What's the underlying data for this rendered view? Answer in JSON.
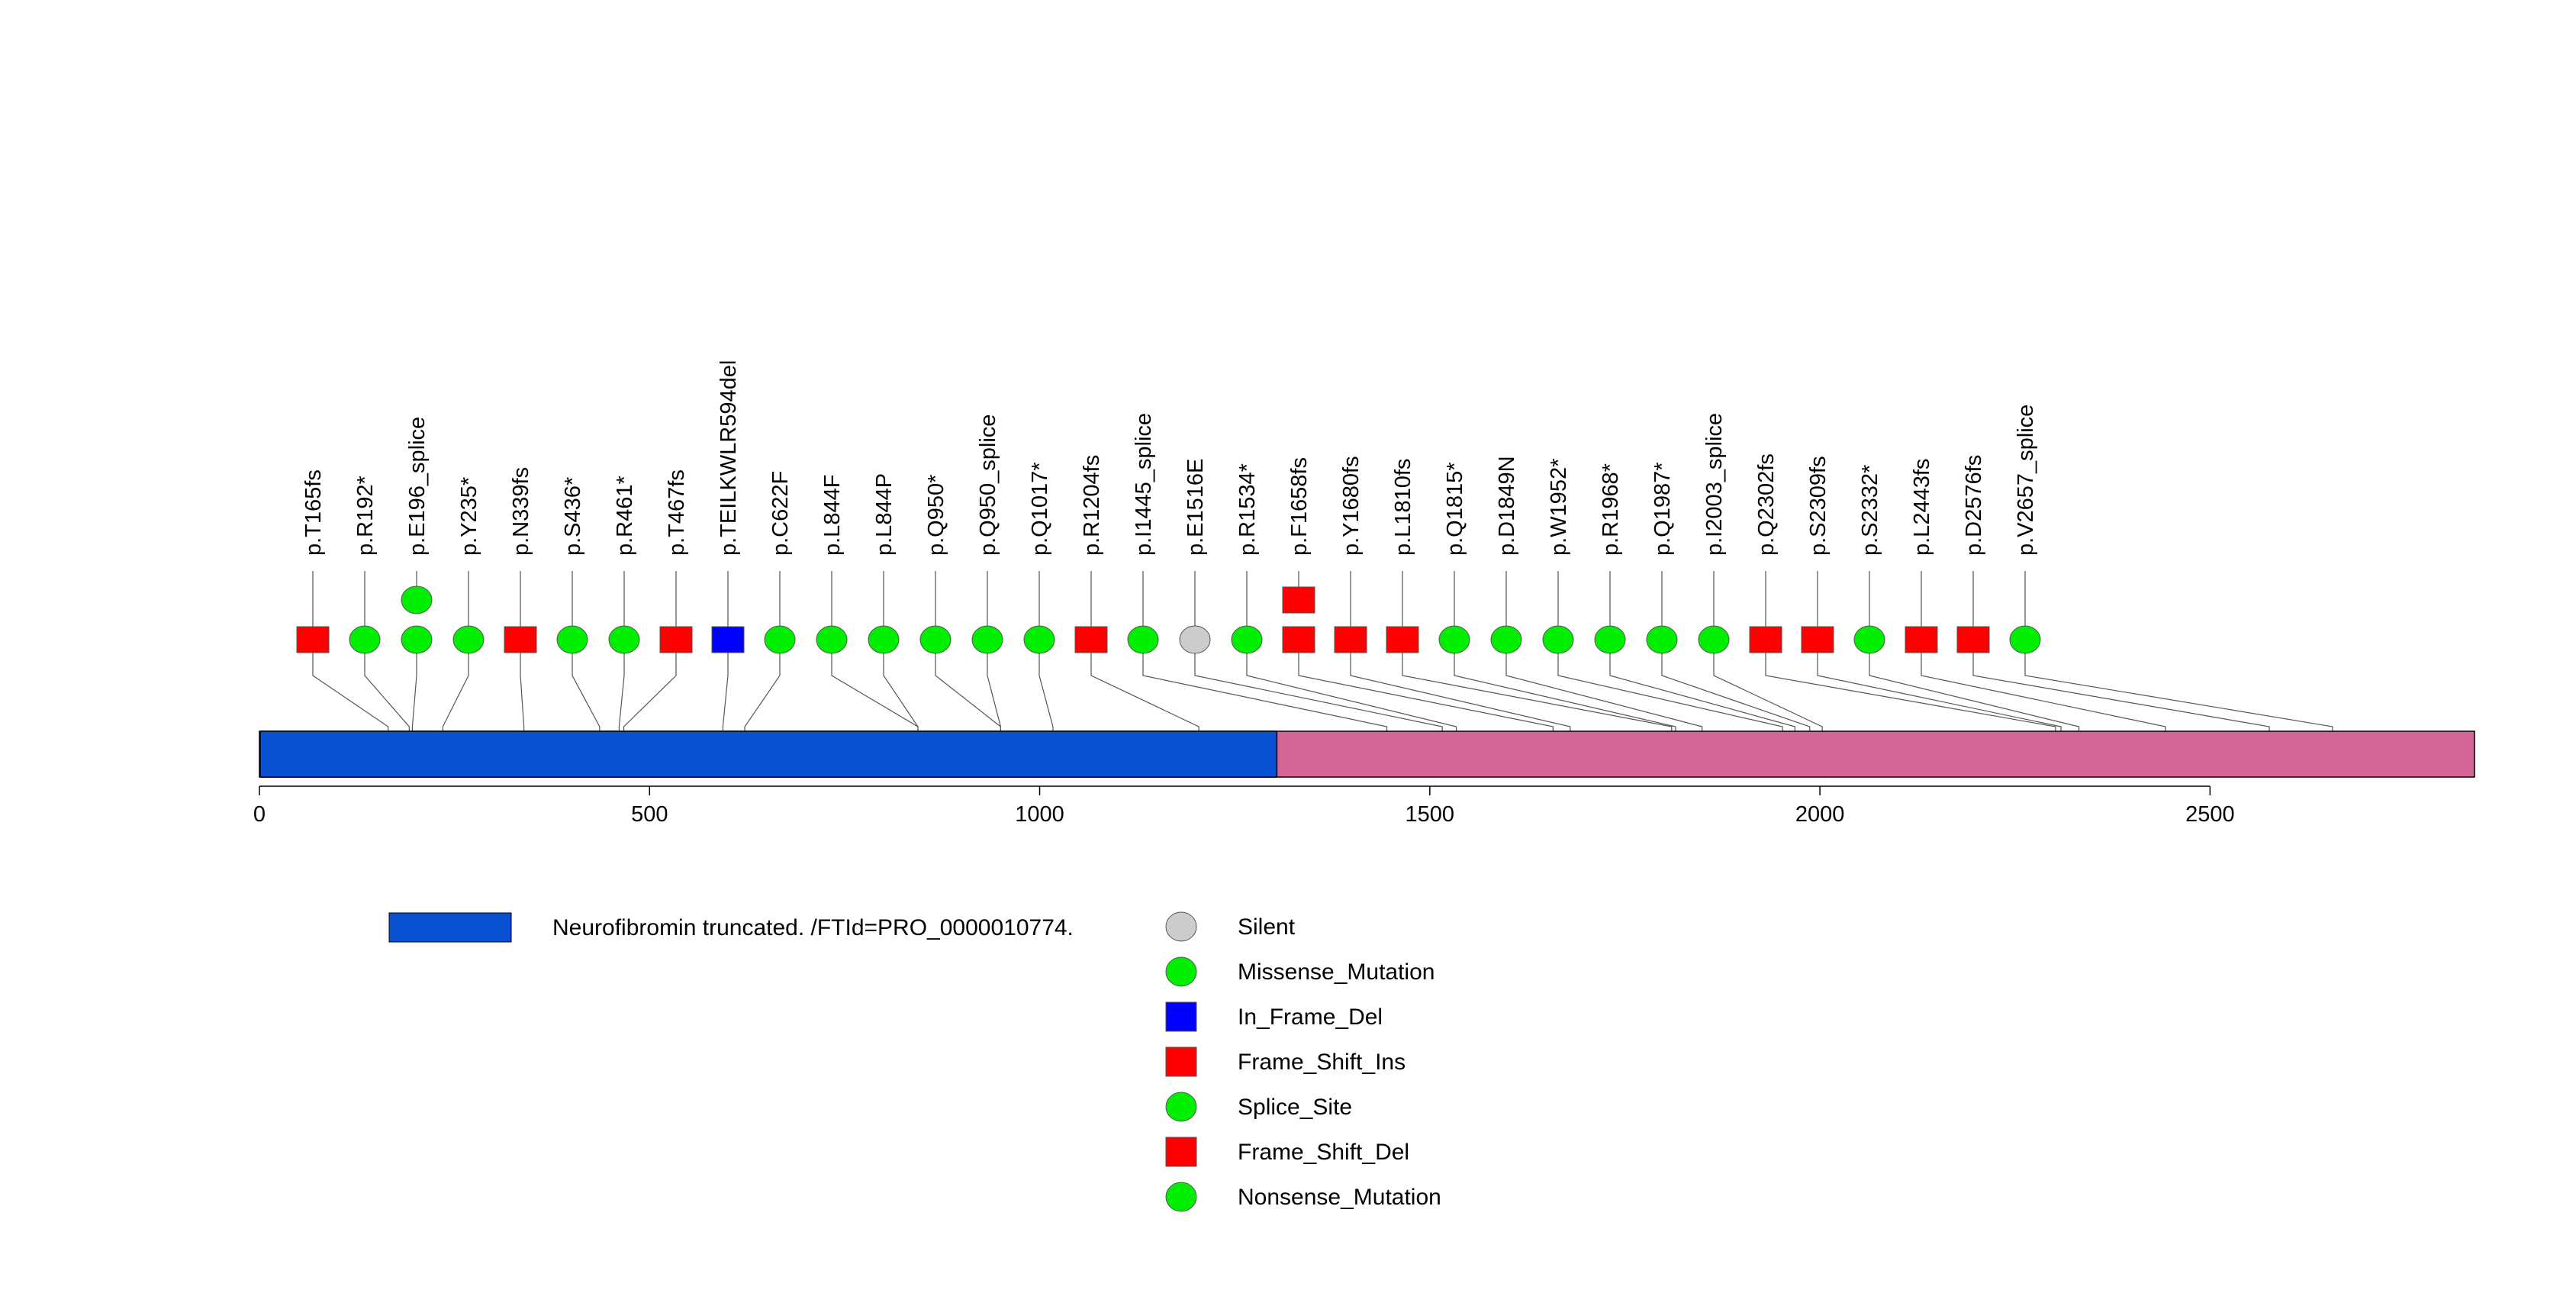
{
  "chart_data": {
    "type": "lollipop",
    "title": "",
    "xlabel": "",
    "ylabel": "",
    "xlim": [
      0,
      2839
    ],
    "x_ticks": [
      0,
      500,
      1000,
      1500,
      2000,
      2500
    ],
    "x_tick_labels": [
      "0",
      "500",
      "1000",
      "1500",
      "2000",
      "2500"
    ],
    "colors": {
      "domain": "#0a50d2",
      "backbone": "#d26496",
      "missense": "#00ee00",
      "silent": "#cccccc",
      "in_frame_del": "#0000ff",
      "frame_shift": "#ff0000"
    },
    "domains": [
      {
        "name": "Neurofibromin truncated. /FTId=PRO_0000010774.",
        "start": 1,
        "end": 1304
      }
    ],
    "mutations": [
      {
        "label": "p.T165fs",
        "pos": 165,
        "type": "Frame_Shift_Del",
        "shape": "square",
        "color": "#ff0000"
      },
      {
        "label": "p.R192*",
        "pos": 192,
        "type": "Nonsense_Mutation",
        "shape": "circle",
        "color": "#00ee00"
      },
      {
        "label": "p.E196_splice",
        "pos": 196,
        "type": "Splice_Site",
        "shape": "circle",
        "color": "#00ee00",
        "count": 2
      },
      {
        "label": "p.Y235*",
        "pos": 235,
        "type": "Nonsense_Mutation",
        "shape": "circle",
        "color": "#00ee00"
      },
      {
        "label": "p.N339fs",
        "pos": 339,
        "type": "Frame_Shift_Del",
        "shape": "square",
        "color": "#ff0000"
      },
      {
        "label": "p.S436*",
        "pos": 436,
        "type": "Nonsense_Mutation",
        "shape": "circle",
        "color": "#00ee00"
      },
      {
        "label": "p.R461*",
        "pos": 461,
        "type": "Nonsense_Mutation",
        "shape": "circle",
        "color": "#00ee00"
      },
      {
        "label": "p.T467fs",
        "pos": 467,
        "type": "Frame_Shift_Ins",
        "shape": "square",
        "color": "#ff0000"
      },
      {
        "label": "p.TEILKWLR594del",
        "pos": 594,
        "type": "In_Frame_Del",
        "shape": "square",
        "color": "#0000ff"
      },
      {
        "label": "p.C622F",
        "pos": 622,
        "type": "Missense_Mutation",
        "shape": "circle",
        "color": "#00ee00"
      },
      {
        "label": "p.L844F",
        "pos": 844,
        "type": "Missense_Mutation",
        "shape": "circle",
        "color": "#00ee00"
      },
      {
        "label": "p.L844P",
        "pos": 844,
        "type": "Missense_Mutation",
        "shape": "circle",
        "color": "#00ee00"
      },
      {
        "label": "p.Q950*",
        "pos": 950,
        "type": "Nonsense_Mutation",
        "shape": "circle",
        "color": "#00ee00"
      },
      {
        "label": "p.Q950_splice",
        "pos": 950,
        "type": "Splice_Site",
        "shape": "circle",
        "color": "#00ee00"
      },
      {
        "label": "p.Q1017*",
        "pos": 1017,
        "type": "Nonsense_Mutation",
        "shape": "circle",
        "color": "#00ee00"
      },
      {
        "label": "p.R1204fs",
        "pos": 1204,
        "type": "Frame_Shift_Ins",
        "shape": "square",
        "color": "#ff0000"
      },
      {
        "label": "p.I1445_splice",
        "pos": 1445,
        "type": "Splice_Site",
        "shape": "circle",
        "color": "#00ee00"
      },
      {
        "label": "p.E1516E",
        "pos": 1516,
        "type": "Silent",
        "shape": "circle",
        "color": "#cccccc"
      },
      {
        "label": "p.R1534*",
        "pos": 1534,
        "type": "Nonsense_Mutation",
        "shape": "circle",
        "color": "#00ee00"
      },
      {
        "label": "p.F1658fs",
        "pos": 1658,
        "type": "Frame_Shift_Del",
        "shape": "square",
        "color": "#ff0000",
        "count": 2
      },
      {
        "label": "p.Y1680fs",
        "pos": 1680,
        "type": "Frame_Shift_Ins",
        "shape": "square",
        "color": "#ff0000"
      },
      {
        "label": "p.L1810fs",
        "pos": 1810,
        "type": "Frame_Shift_Del",
        "shape": "square",
        "color": "#ff0000"
      },
      {
        "label": "p.Q1815*",
        "pos": 1815,
        "type": "Nonsense_Mutation",
        "shape": "circle",
        "color": "#00ee00"
      },
      {
        "label": "p.D1849N",
        "pos": 1849,
        "type": "Missense_Mutation",
        "shape": "circle",
        "color": "#00ee00"
      },
      {
        "label": "p.W1952*",
        "pos": 1952,
        "type": "Nonsense_Mutation",
        "shape": "circle",
        "color": "#00ee00"
      },
      {
        "label": "p.R1968*",
        "pos": 1968,
        "type": "Nonsense_Mutation",
        "shape": "circle",
        "color": "#00ee00"
      },
      {
        "label": "p.Q1987*",
        "pos": 1987,
        "type": "Nonsense_Mutation",
        "shape": "circle",
        "color": "#00ee00"
      },
      {
        "label": "p.I2003_splice",
        "pos": 2003,
        "type": "Splice_Site",
        "shape": "circle",
        "color": "#00ee00"
      },
      {
        "label": "p.Q2302fs",
        "pos": 2302,
        "type": "Frame_Shift_Ins",
        "shape": "square",
        "color": "#ff0000"
      },
      {
        "label": "p.S2309fs",
        "pos": 2309,
        "type": "Frame_Shift_Del",
        "shape": "square",
        "color": "#ff0000"
      },
      {
        "label": "p.S2332*",
        "pos": 2332,
        "type": "Nonsense_Mutation",
        "shape": "circle",
        "color": "#00ee00"
      },
      {
        "label": "p.L2443fs",
        "pos": 2443,
        "type": "Frame_Shift_Del",
        "shape": "square",
        "color": "#ff0000"
      },
      {
        "label": "p.D2576fs",
        "pos": 2576,
        "type": "Frame_Shift_Del",
        "shape": "square",
        "color": "#ff0000"
      },
      {
        "label": "p.V2657_splice",
        "pos": 2657,
        "type": "Splice_Site",
        "shape": "circle",
        "color": "#00ee00"
      }
    ],
    "legend": [
      {
        "label": "Silent",
        "shape": "circle",
        "color": "#cccccc"
      },
      {
        "label": "Missense_Mutation",
        "shape": "circle",
        "color": "#00ee00"
      },
      {
        "label": "In_Frame_Del",
        "shape": "square",
        "color": "#0000ff"
      },
      {
        "label": "Frame_Shift_Ins",
        "shape": "square",
        "color": "#ff0000"
      },
      {
        "label": "Splice_Site",
        "shape": "circle",
        "color": "#00ee00"
      },
      {
        "label": "Frame_Shift_Del",
        "shape": "square",
        "color": "#ff0000"
      },
      {
        "label": "Nonsense_Mutation",
        "shape": "circle",
        "color": "#00ee00"
      }
    ]
  }
}
